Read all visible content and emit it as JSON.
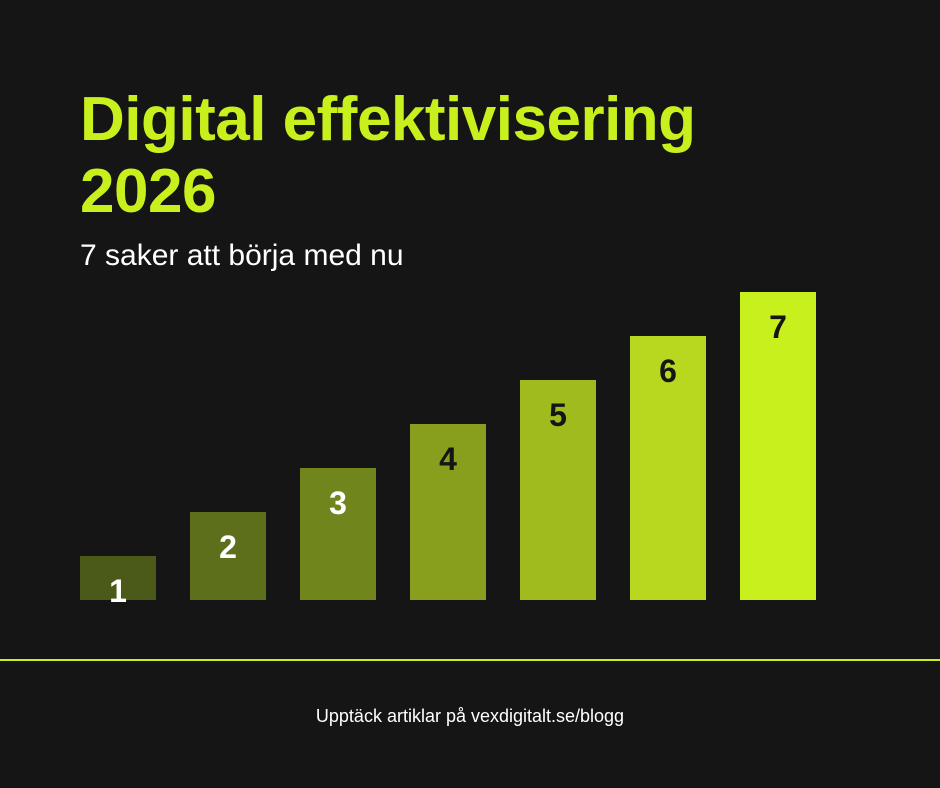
{
  "header": {
    "title_line1": "Digital effektivisering",
    "title_line2": "2026",
    "subtitle": "7 saker att börja med nu"
  },
  "footer": {
    "text": "Upptäck artiklar på vexdigitalt.se/blogg"
  },
  "colors": {
    "background": "#151515",
    "accent": "#c8f01c",
    "bars": [
      "#4b5a18",
      "#5d6f1a",
      "#70861c",
      "#889f1e",
      "#a0bb1e",
      "#b7d81e",
      "#c8f01c"
    ],
    "label_light": "#ffffff",
    "label_dark": "#151515"
  },
  "chart_data": {
    "type": "bar",
    "categories": [
      "1",
      "2",
      "3",
      "4",
      "5",
      "6",
      "7"
    ],
    "values": [
      1,
      2,
      3,
      4,
      5,
      6,
      7
    ],
    "data_labels": [
      "1",
      "2",
      "3",
      "4",
      "5",
      "6",
      "7"
    ],
    "ylim": [
      0,
      7
    ],
    "grid": false,
    "axes_visible": false
  }
}
